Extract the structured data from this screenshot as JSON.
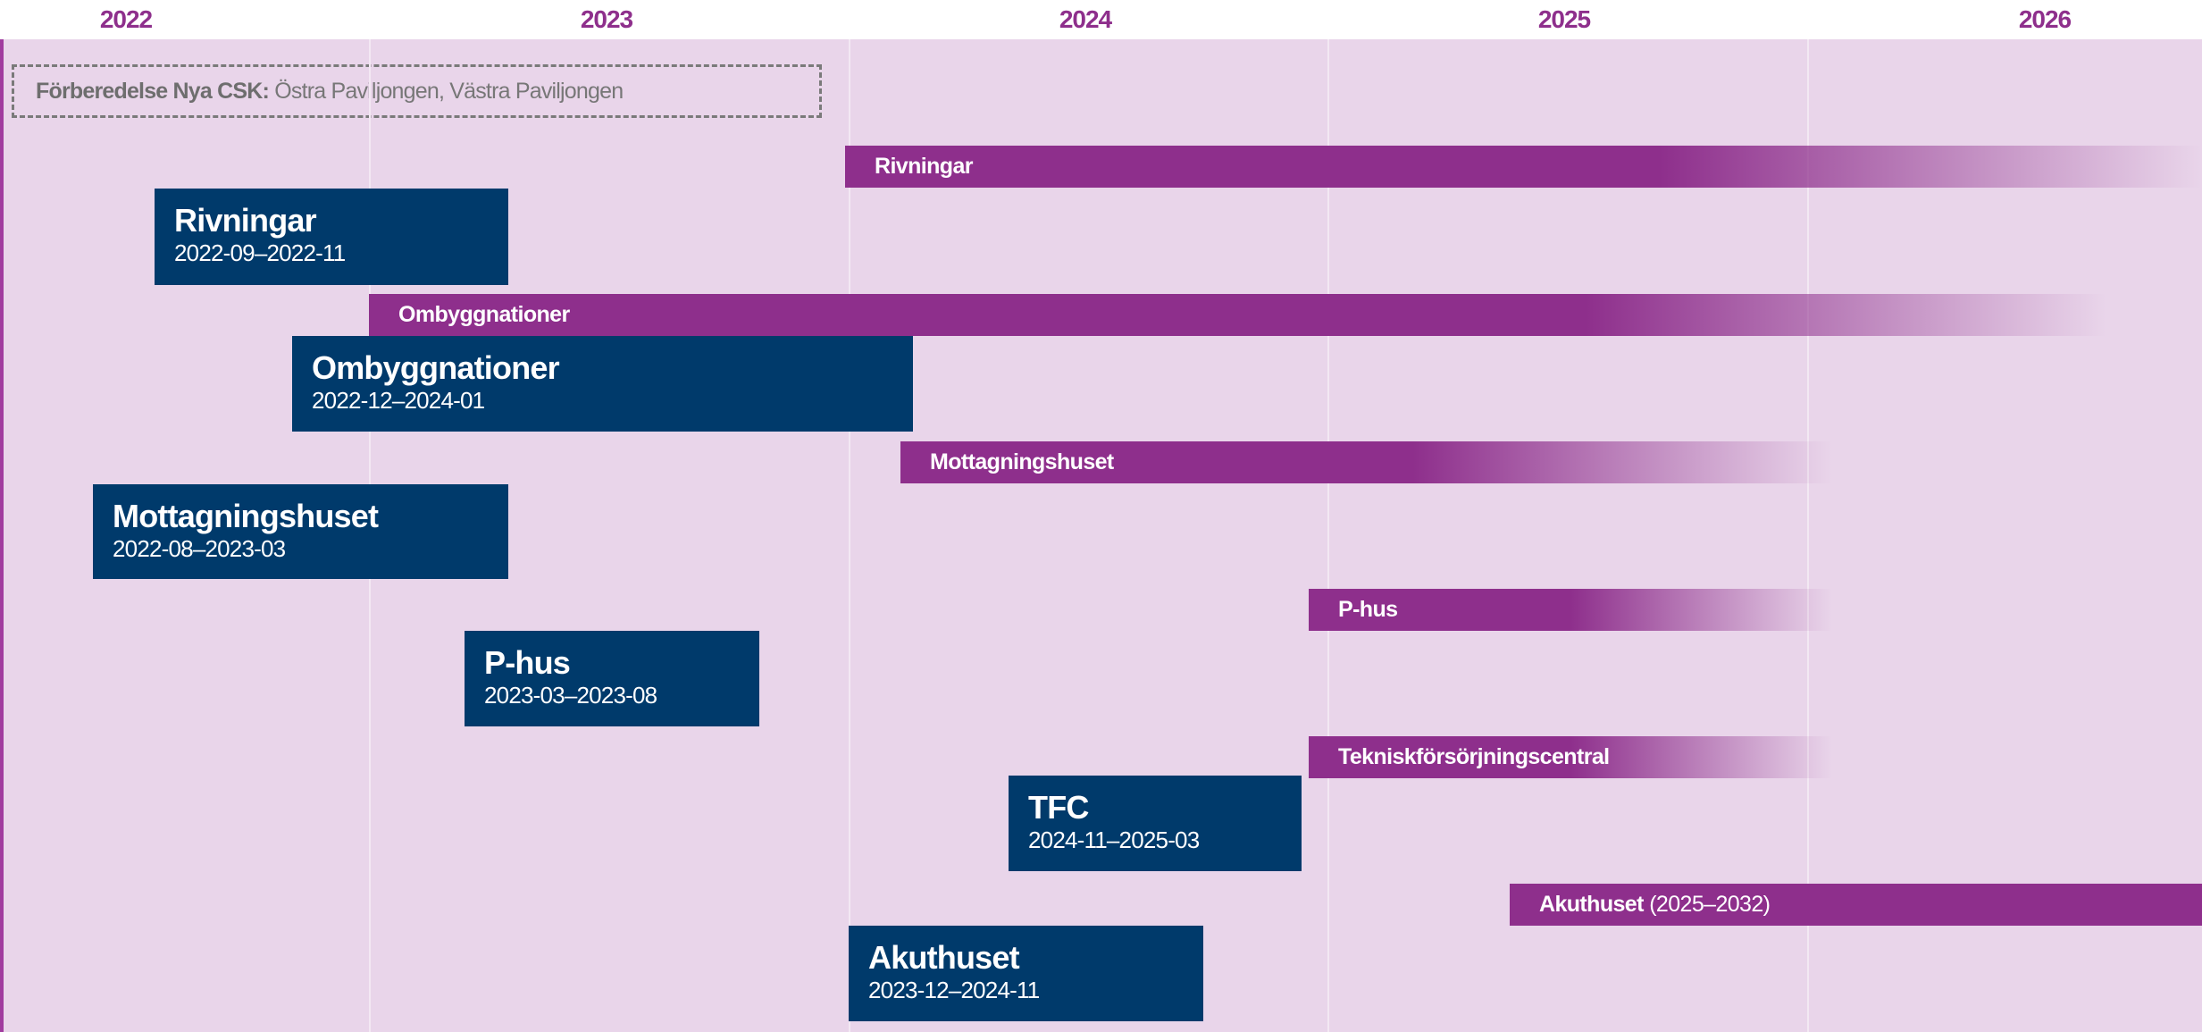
{
  "years": [
    "2022",
    "2023",
    "2024",
    "2025",
    "2026"
  ],
  "note": {
    "label": "Förberedelse Nya CSK:",
    "text": "Östra Paviljongen, Västra Paviljongen"
  },
  "phases": [
    {
      "label": "Rivningar"
    },
    {
      "label": "Ombyggnationer"
    },
    {
      "label": "Mottagningshuset"
    },
    {
      "label": "P-hus"
    },
    {
      "label": "Tekniskförsörjningscentral"
    },
    {
      "label": "Akuthuset",
      "suffix": "(2025–2032)"
    }
  ],
  "projects": [
    {
      "title": "Rivningar",
      "dates": "2022-09–2022-11"
    },
    {
      "title": "Ombyggnationer",
      "dates": "2022-12–2024-01"
    },
    {
      "title": "Mottagningshuset",
      "dates": "2022-08–2023-03"
    },
    {
      "title": "P-hus",
      "dates": "2023-03–2023-08"
    },
    {
      "title": "TFC",
      "dates": "2024-11–2025-03"
    },
    {
      "title": "Akuthuset",
      "dates": "2023-12–2024-11"
    }
  ]
}
